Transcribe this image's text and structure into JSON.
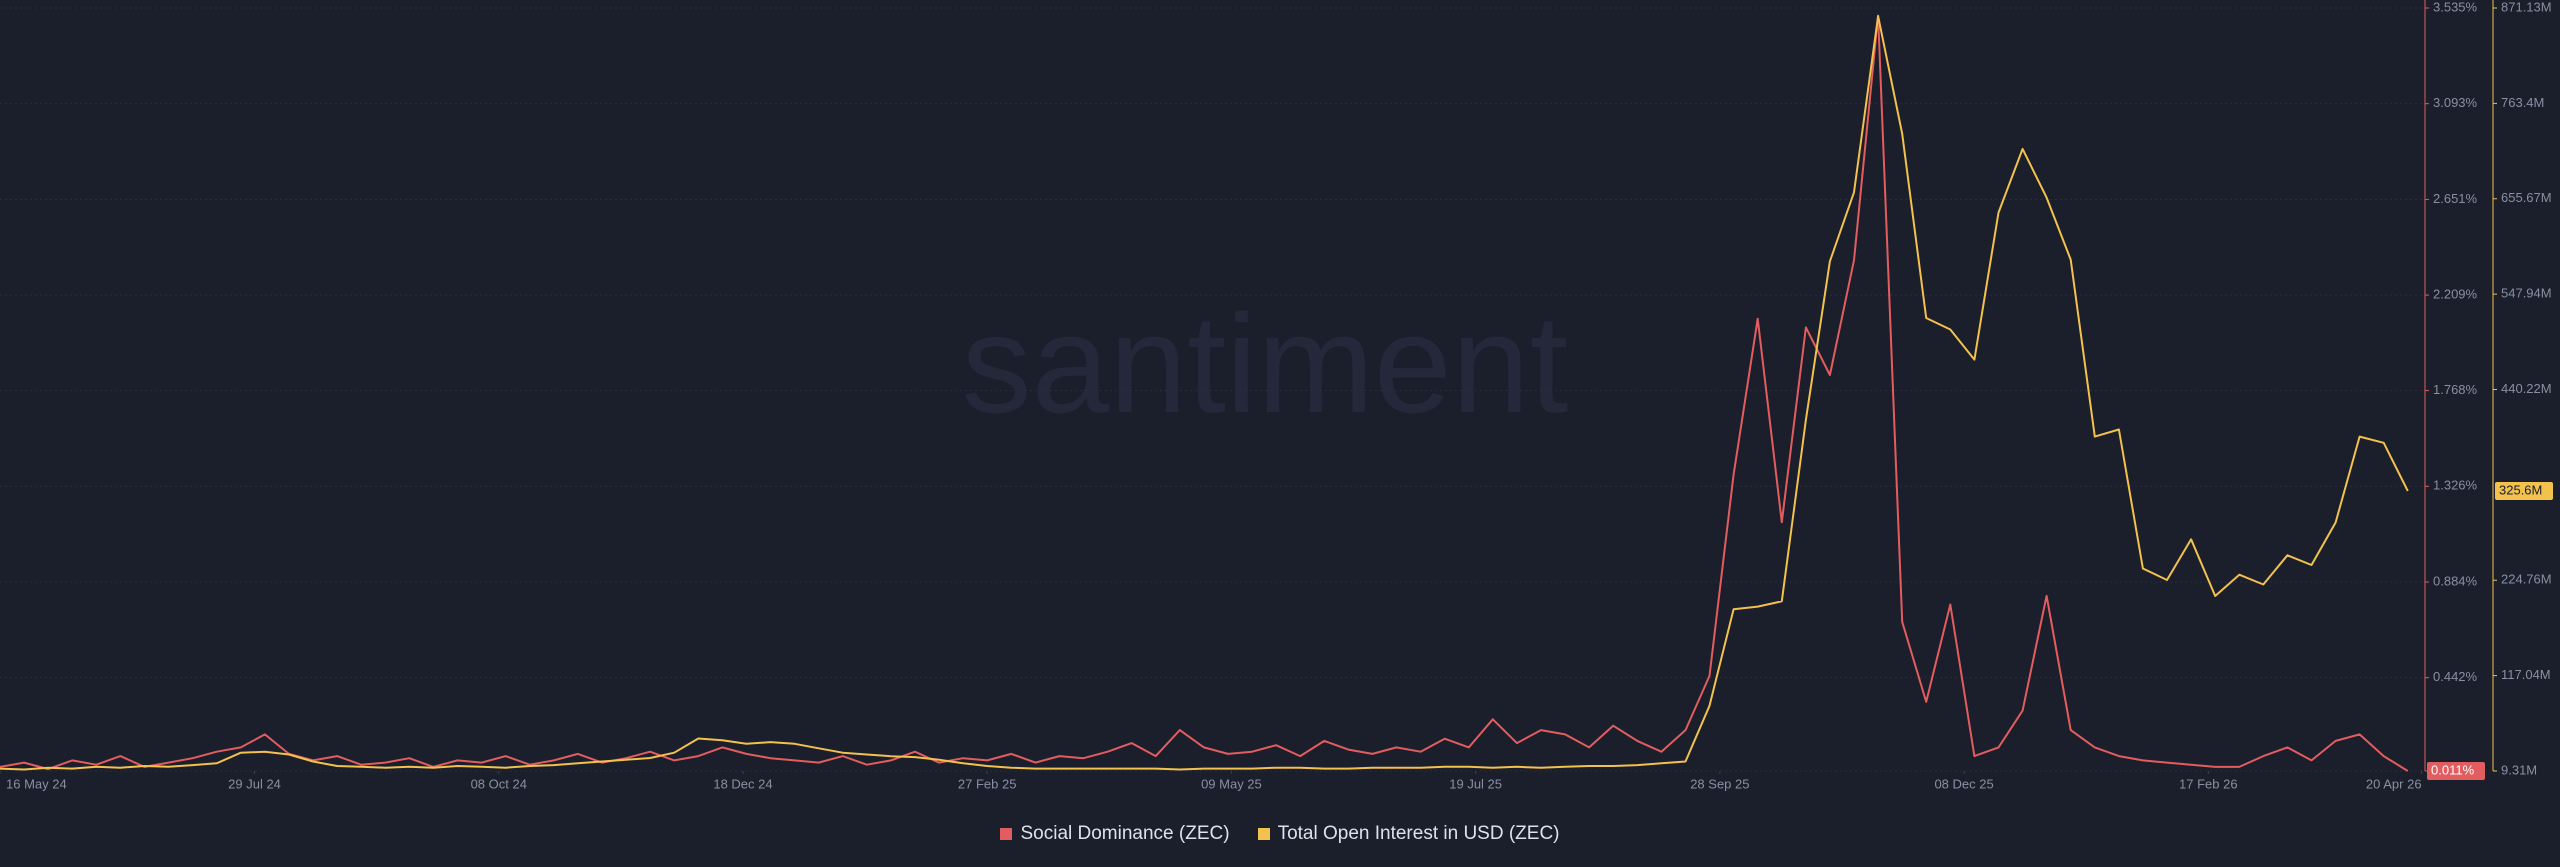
{
  "chart_data": {
    "type": "line",
    "watermark": "santiment",
    "x": [
      "2024-05-16",
      "2024-05-23",
      "2024-05-30",
      "2024-06-06",
      "2024-06-13",
      "2024-06-20",
      "2024-06-27",
      "2024-07-04",
      "2024-07-11",
      "2024-07-18",
      "2024-07-25",
      "2024-08-01",
      "2024-08-08",
      "2024-08-15",
      "2024-08-22",
      "2024-08-29",
      "2024-09-05",
      "2024-09-12",
      "2024-09-19",
      "2024-09-26",
      "2024-10-03",
      "2024-10-10",
      "2024-10-17",
      "2024-10-24",
      "2024-10-31",
      "2024-11-07",
      "2024-11-14",
      "2024-11-21",
      "2024-11-28",
      "2024-12-05",
      "2024-12-12",
      "2024-12-19",
      "2024-12-26",
      "2025-01-02",
      "2025-01-09",
      "2025-01-16",
      "2025-01-23",
      "2025-01-30",
      "2025-02-06",
      "2025-02-13",
      "2025-02-20",
      "2025-02-27",
      "2025-03-06",
      "2025-03-13",
      "2025-03-20",
      "2025-03-27",
      "2025-04-03",
      "2025-04-10",
      "2025-04-17",
      "2025-04-24",
      "2025-05-01",
      "2025-05-08",
      "2025-05-15",
      "2025-05-22",
      "2025-05-29",
      "2025-06-05",
      "2025-06-12",
      "2025-06-19",
      "2025-06-26",
      "2025-07-03",
      "2025-07-10",
      "2025-07-17",
      "2025-07-24",
      "2025-07-31",
      "2025-08-07",
      "2025-08-14",
      "2025-08-21",
      "2025-08-28",
      "2025-09-04",
      "2025-09-11",
      "2025-09-18",
      "2025-09-25",
      "2025-10-02",
      "2025-10-09",
      "2025-10-16",
      "2025-10-23",
      "2025-10-30",
      "2025-11-06",
      "2025-11-13",
      "2025-11-20",
      "2025-11-27",
      "2025-12-04",
      "2025-12-11",
      "2025-12-18",
      "2025-12-25",
      "2026-01-01",
      "2026-01-08",
      "2026-01-15",
      "2026-01-22",
      "2026-01-29",
      "2026-02-05",
      "2026-02-12",
      "2026-02-19",
      "2026-02-26",
      "2026-03-05",
      "2026-03-12",
      "2026-03-19",
      "2026-03-26",
      "2026-04-02",
      "2026-04-09",
      "2026-04-16"
    ],
    "xlim": [
      "2024-05-16",
      "2026-04-21"
    ],
    "xticks": [
      {
        "value": "2024-05-16",
        "label": "16 May 24"
      },
      {
        "value": "2024-07-29",
        "label": "29 Jul 24"
      },
      {
        "value": "2024-10-08",
        "label": "08 Oct 24"
      },
      {
        "value": "2024-12-18",
        "label": "18 Dec 24"
      },
      {
        "value": "2025-02-27",
        "label": "27 Feb 25"
      },
      {
        "value": "2025-05-09",
        "label": "09 May 25"
      },
      {
        "value": "2025-07-19",
        "label": "19 Jul 25"
      },
      {
        "value": "2025-09-28",
        "label": "28 Sep 25"
      },
      {
        "value": "2025-12-08",
        "label": "08 Dec 25"
      },
      {
        "value": "2026-02-17",
        "label": "17 Feb 26"
      },
      {
        "value": "2026-04-20",
        "label": "20 Apr 26"
      }
    ],
    "ylim": [
      0.011,
      3.535
    ],
    "yticks": [
      {
        "value": 0.011,
        "label": "0.011%"
      },
      {
        "value": 0.442,
        "label": "0.442%"
      },
      {
        "value": 0.884,
        "label": "0.884%"
      },
      {
        "value": 1.326,
        "label": "1.326%"
      },
      {
        "value": 1.768,
        "label": "1.768%"
      },
      {
        "value": 2.209,
        "label": "2.209%"
      },
      {
        "value": 2.651,
        "label": "2.651%"
      },
      {
        "value": 3.093,
        "label": "3.093%"
      },
      {
        "value": 3.535,
        "label": "3.535%"
      }
    ],
    "y2lim": [
      9.31,
      871.13
    ],
    "y2ticks": [
      {
        "value": 9.31,
        "label": "9.31M"
      },
      {
        "value": 117.04,
        "label": "117.04M"
      },
      {
        "value": 224.76,
        "label": "224.76M"
      },
      {
        "value": 440.22,
        "label": "440.22M"
      },
      {
        "value": 547.94,
        "label": "547.94M"
      },
      {
        "value": 655.67,
        "label": "655.67M"
      },
      {
        "value": 763.4,
        "label": "763.4M"
      },
      {
        "value": 871.13,
        "label": "871.13M"
      }
    ],
    "grid": true,
    "series": [
      {
        "name": "Social Dominance (ZEC)",
        "color": "#e25d5f",
        "axis": "y",
        "values": [
          0.03,
          0.05,
          0.02,
          0.06,
          0.04,
          0.08,
          0.03,
          0.05,
          0.07,
          0.1,
          0.12,
          0.18,
          0.09,
          0.06,
          0.08,
          0.04,
          0.05,
          0.07,
          0.03,
          0.06,
          0.05,
          0.08,
          0.04,
          0.06,
          0.09,
          0.05,
          0.07,
          0.1,
          0.06,
          0.08,
          0.12,
          0.09,
          0.07,
          0.06,
          0.05,
          0.08,
          0.04,
          0.06,
          0.1,
          0.05,
          0.07,
          0.06,
          0.09,
          0.05,
          0.08,
          0.07,
          0.1,
          0.14,
          0.08,
          0.2,
          0.12,
          0.09,
          0.1,
          0.13,
          0.08,
          0.15,
          0.11,
          0.09,
          0.12,
          0.1,
          0.16,
          0.12,
          0.25,
          0.14,
          0.2,
          0.18,
          0.12,
          0.22,
          0.15,
          0.1,
          0.2,
          0.45,
          1.38,
          2.1,
          1.16,
          2.06,
          1.84,
          2.37,
          3.5,
          0.7,
          0.33,
          0.78,
          0.08,
          0.12,
          0.29,
          0.82,
          0.2,
          0.12,
          0.08,
          0.06,
          0.05,
          0.04,
          0.03,
          0.03,
          0.08,
          0.12,
          0.06,
          0.15,
          0.18,
          0.08,
          0.011
        ],
        "value_labels": [
          null,
          null,
          null,
          null,
          null,
          null,
          null,
          null,
          null,
          null,
          null,
          null,
          null,
          null,
          null,
          null,
          null,
          null,
          null,
          null,
          null,
          null,
          null,
          null,
          null,
          null,
          null,
          null,
          null,
          null,
          null,
          null,
          null,
          null,
          null,
          null,
          null,
          null,
          null,
          null,
          null,
          null,
          null,
          null,
          null,
          null,
          null,
          null,
          null,
          null,
          null,
          null,
          null,
          null,
          null,
          null,
          null,
          null,
          null,
          null,
          null,
          null,
          null,
          null,
          null,
          null,
          null,
          null,
          null,
          null,
          null,
          null,
          null,
          null,
          null,
          null,
          null,
          null,
          null,
          null,
          null,
          null,
          null,
          null,
          null,
          null,
          null,
          null,
          null,
          null,
          null,
          null,
          null,
          null,
          null,
          null,
          null,
          null,
          null,
          null,
          "0.011%"
        ]
      },
      {
        "name": "Total Open Interest in USD (ZEC)",
        "color": "#f2c14e",
        "axis": "y2",
        "values": [
          12,
          11,
          13,
          12,
          14,
          13,
          15,
          14,
          16,
          18,
          30,
          31,
          28,
          20,
          15,
          14,
          13,
          14,
          13,
          15,
          14,
          13,
          15,
          16,
          18,
          20,
          22,
          24,
          30,
          46,
          44,
          40,
          42,
          40,
          35,
          30,
          28,
          26,
          25,
          22,
          18,
          15,
          13,
          12,
          12,
          12,
          12,
          12,
          12,
          11,
          12,
          12,
          12,
          13,
          13,
          12,
          12,
          13,
          13,
          13,
          14,
          14,
          13,
          14,
          13,
          14,
          15,
          15,
          16,
          18,
          20,
          83,
          192,
          195,
          201,
          406,
          585,
          663,
          862,
          729,
          521,
          508,
          474,
          640,
          712,
          657,
          587,
          387,
          395,
          238,
          225,
          271,
          207,
          231,
          220,
          253,
          242,
          290,
          387,
          380,
          325.6
        ],
        "value_labels": [
          null,
          null,
          null,
          null,
          null,
          null,
          null,
          null,
          null,
          null,
          null,
          null,
          null,
          null,
          null,
          null,
          null,
          null,
          null,
          null,
          null,
          null,
          null,
          null,
          null,
          null,
          null,
          null,
          null,
          null,
          null,
          null,
          null,
          null,
          null,
          null,
          null,
          null,
          null,
          null,
          null,
          null,
          null,
          null,
          null,
          null,
          null,
          null,
          null,
          null,
          null,
          null,
          null,
          null,
          null,
          null,
          null,
          null,
          null,
          null,
          null,
          null,
          null,
          null,
          null,
          null,
          null,
          null,
          null,
          null,
          null,
          null,
          null,
          null,
          null,
          null,
          null,
          null,
          null,
          null,
          null,
          null,
          null,
          null,
          null,
          null,
          null,
          null,
          null,
          null,
          null,
          null,
          null,
          null,
          null,
          null,
          null,
          null,
          null,
          null,
          "325.6M"
        ]
      }
    ]
  }
}
